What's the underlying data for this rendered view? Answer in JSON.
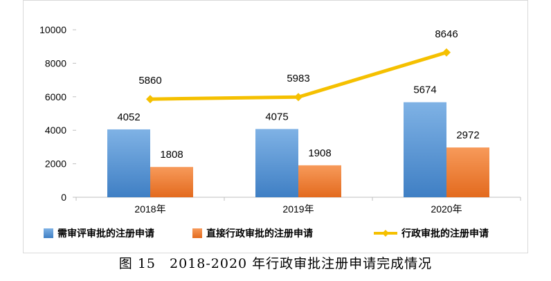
{
  "chart_data": {
    "type": "bar",
    "categories": [
      "2018年",
      "2019年",
      "2020年"
    ],
    "series": [
      {
        "name": "需审评审批的注册申请",
        "type": "bar",
        "values": [
          4052,
          4075,
          5674
        ],
        "color": "#5b9bd5"
      },
      {
        "name": "直接行政审批的注册申请",
        "type": "bar",
        "values": [
          1808,
          1908,
          2972
        ],
        "color": "#ed7d31"
      },
      {
        "name": "行政审批的注册申请",
        "type": "line",
        "values": [
          5860,
          5983,
          8646
        ],
        "color": "#f5c000"
      }
    ],
    "ylim": [
      0,
      10000
    ],
    "yticks": [
      0,
      2000,
      4000,
      6000,
      8000,
      10000
    ],
    "legend_position": "bottom"
  },
  "caption": "图 15　2018-2020 年行政审批注册申请完成情况"
}
